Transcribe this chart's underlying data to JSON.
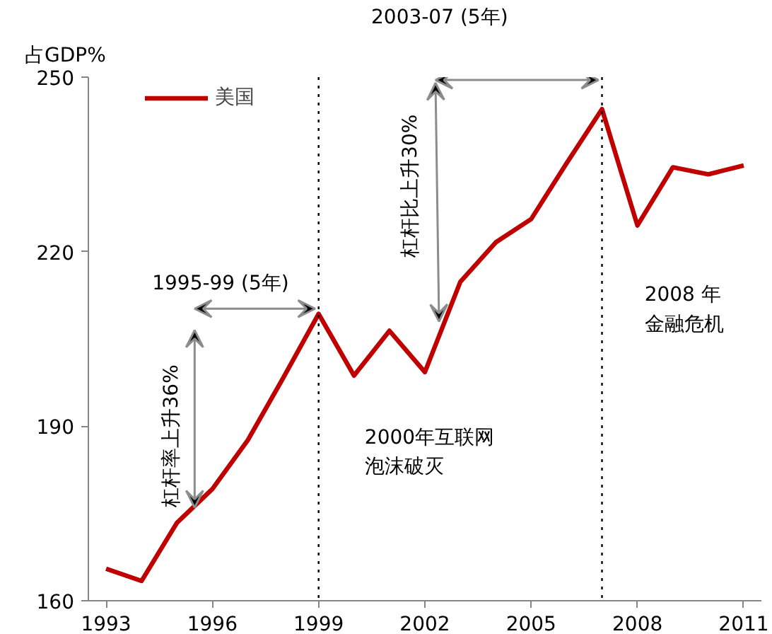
{
  "chart_data": {
    "type": "line",
    "ylabel": "占GDP%",
    "x": [
      1993,
      1994,
      1995,
      1996,
      1997,
      1998,
      1999,
      2000,
      2001,
      2002,
      2003,
      2004,
      2005,
      2006,
      2007,
      2008,
      2009,
      2010,
      2011
    ],
    "series": [
      {
        "name": "美国",
        "color": "#c00000",
        "values": [
          165.5,
          163.4,
          173.4,
          179.2,
          187.6,
          198.3,
          209.3,
          198.7,
          206.4,
          199.3,
          214.8,
          221.6,
          225.6,
          235.2,
          244.5,
          224.5,
          234.5,
          233.3,
          234.8
        ]
      }
    ],
    "xlim": [
      1992.5,
      2011.5
    ],
    "xticks": [
      1993,
      1996,
      1999,
      2002,
      2005,
      2008,
      2011
    ],
    "ylim": [
      160,
      250
    ],
    "yticks": [
      160,
      190,
      220,
      250
    ],
    "ref_lines": [
      {
        "axis": "x",
        "value": 1999,
        "color": "#000000",
        "line_style": "dotted"
      },
      {
        "axis": "x",
        "value": 2007,
        "color": "#000000",
        "line_style": "dotted"
      }
    ],
    "annotations": [
      "1995-99 (5年)",
      "杠杆率上升36%",
      "2003-07 (5年)",
      "杠杆比上升30%",
      "2000年互联网泡沫破灭",
      "2008 年金融危机"
    ],
    "legend": "top left",
    "grid": false,
    "marker": "none",
    "line_style": "solid"
  }
}
